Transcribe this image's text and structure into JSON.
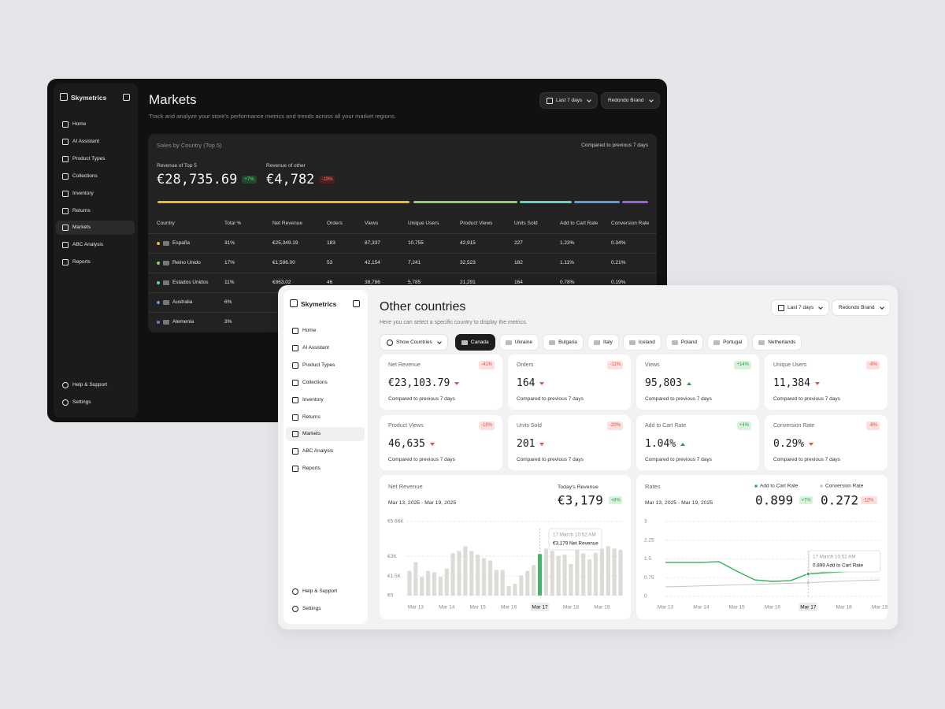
{
  "markets_view": {
    "brand": "Skymetrics",
    "nav": [
      "Home",
      "AI Assistant",
      "Product Types",
      "Collections",
      "Inventory",
      "Returns",
      "Markets",
      "ABC Analysis",
      "Reports"
    ],
    "footer_nav": [
      "Help & Support",
      "Settings"
    ],
    "title": "Markets",
    "subtitle": "Track and analyze your store's performance metrics and trends across all your market regions.",
    "date_filter": "Last 7 days",
    "brand_filter": "Redondo Brand",
    "sales_card": {
      "title": "Sales by Country (Top 5)",
      "comparison": "Compared to previous 7 days",
      "kpis": [
        {
          "label": "Revenue of Top 5",
          "value": "€28,735.69",
          "change": "+7%"
        },
        {
          "label": "Revenue of other",
          "value": "€4,782",
          "change": "-19%"
        }
      ],
      "table": {
        "colors": [
          "#e8b92c",
          "#8fce6a",
          "#5dd3c0",
          "#5b9be0",
          "#9a5fe0"
        ],
        "columns": [
          "Country",
          "Total %",
          "Net Revenue",
          "Orders",
          "Views",
          "Unique Users",
          "Product Views",
          "Units Sold",
          "Add to Cart Rate",
          "Conversion Rate"
        ],
        "rows": [
          [
            "España",
            "31%",
            "€25,349.19",
            "183",
            "87,337",
            "10,755",
            "42,915",
            "227",
            "1.23%",
            "0.34%"
          ],
          [
            "Reino Unido",
            "17%",
            "€1,596.00",
            "53",
            "42,154",
            "7,241",
            "32,523",
            "182",
            "1.11%",
            "0.21%"
          ],
          [
            "Estados Unidos",
            "11%",
            "€863.02",
            "46",
            "38,786",
            "5,785",
            "21,291",
            "164",
            "0.78%",
            "0.19%"
          ],
          [
            "Australia",
            "6%"
          ],
          [
            "Alemenia",
            "3%"
          ]
        ]
      }
    }
  },
  "countries_view": {
    "brand": "Skymetrics",
    "nav": [
      "Home",
      "AI Assistant",
      "Product Types",
      "Collections",
      "Inventory",
      "Returns",
      "Markets",
      "ABC Analysis",
      "Reports"
    ],
    "footer_nav": [
      "Help & Support",
      "Settings"
    ],
    "title": "Other countries",
    "subtitle": "Here you can select a specific country to display the metrics.",
    "date_filter": "Last 7 days",
    "brand_filter": "Redondo Brand",
    "country_filter": "Show Countries",
    "countries": [
      "Canada",
      "Ukraine",
      "Bulgaria",
      "Italy",
      "Iceland",
      "Poland",
      "Portugal",
      "Netherlands"
    ],
    "metrics": [
      {
        "label": "Net Revenue",
        "value": "€23,103.79",
        "change": "-41%",
        "comparison": "Compared to previous 7 days"
      },
      {
        "label": "Orders",
        "value": "164",
        "change": "-11%",
        "comparison": "Compared to previous 7 days"
      },
      {
        "label": "Views",
        "value": "95,803",
        "change": "+14%",
        "comparison": "Compared to previous 7 days"
      },
      {
        "label": "Unique Users",
        "value": "11,384",
        "change": "-6%",
        "comparison": "Compared to previous 7 days"
      },
      {
        "label": "Product Views",
        "value": "46,635",
        "change": "-18%",
        "comparison": "Compared to previous 7 days"
      },
      {
        "label": "Units Sold",
        "value": "201",
        "change": "-20%",
        "comparison": "Compared to previous 7 days"
      },
      {
        "label": "Add to Cart Rate",
        "value": "1.04%",
        "change": "+4%",
        "comparison": "Compared to previous 7 days"
      },
      {
        "label": "Conversion Rate",
        "value": "0.29%",
        "change": "-8%",
        "comparison": "Compared to previous 7 days"
      }
    ],
    "net_revenue_chart": {
      "type": "bar",
      "title": "Net Revenue",
      "subtitle": "Mar 13, 2025 - Mar 19, 2025",
      "summary_label": "Today's Revenue",
      "summary_value": "€3,179",
      "summary_change": "+8%",
      "categories": [
        null,
        "Mar 13",
        null,
        null,
        null,
        null,
        "Mar 14",
        null,
        null,
        null,
        null,
        "Mar 15",
        null,
        null,
        null,
        null,
        "Mar 16",
        null,
        null,
        null,
        null,
        "Mar 17",
        null,
        null,
        null,
        null,
        "Mar 18",
        null,
        null,
        null,
        null,
        "Mar 19",
        null,
        null,
        null
      ],
      "values": [
        1880,
        2560,
        1440,
        1880,
        1790,
        1440,
        2060,
        3230,
        3410,
        3770,
        3410,
        3140,
        2870,
        2690,
        1970,
        1970,
        720,
        900,
        1530,
        1880,
        2330,
        3179,
        3590,
        3410,
        3050,
        3140,
        2420,
        3590,
        3230,
        2780,
        3270,
        3590,
        3770,
        3590,
        3500
      ],
      "color": "#dcdcd7",
      "highlight_color": "#3cb96a",
      "highlight_index": 21,
      "ylim": [
        0,
        5660
      ],
      "yticks": [
        {
          "value": 0,
          "label": "€0"
        },
        {
          "value": 1500,
          "label": "€1.5K"
        },
        {
          "value": 3000,
          "label": "€3K"
        },
        {
          "value": 5660,
          "label": "€5.66K"
        }
      ],
      "grid": true,
      "tooltip": {
        "title": "17 March 10:52 AM",
        "text": "€3,179 Net Revenue"
      }
    },
    "rates_chart": {
      "type": "line",
      "title": "Rates",
      "subtitle": "Mar 13, 2025 - Mar 19, 2025",
      "categories": [
        "Mar 13",
        null,
        "Mar 14",
        null,
        "Mar 15",
        null,
        "Mar 16",
        null,
        "Mar 17",
        null,
        "Mar 18",
        null,
        "Mar 19"
      ],
      "series": [
        {
          "name": "Add to Cart Rate",
          "color": "#2fb35a",
          "values": [
            1.36,
            1.36,
            1.36,
            1.39,
            1.01,
            0.66,
            0.6,
            0.63,
            0.9,
            0.95,
            0.98,
            1.04,
            1.55
          ]
        },
        {
          "name": "Conversion Rate",
          "color": "#c4c4c4",
          "values": [
            0.38,
            0.4,
            0.42,
            0.44,
            0.46,
            0.48,
            0.5,
            0.52,
            0.55,
            0.58,
            0.61,
            0.64,
            0.66
          ]
        }
      ],
      "summaries": [
        {
          "value": "0.899",
          "change": "+7%"
        },
        {
          "value": "0.272",
          "change": "-12%"
        }
      ],
      "highlight_index": 8,
      "ylim": [
        0,
        3
      ],
      "yticks": [
        0,
        0.75,
        1.5,
        2.25,
        3
      ],
      "grid": true,
      "tooltip": {
        "title": "17 March 10:52 AM",
        "text": "0.899 Add to Cart Rate"
      }
    }
  }
}
